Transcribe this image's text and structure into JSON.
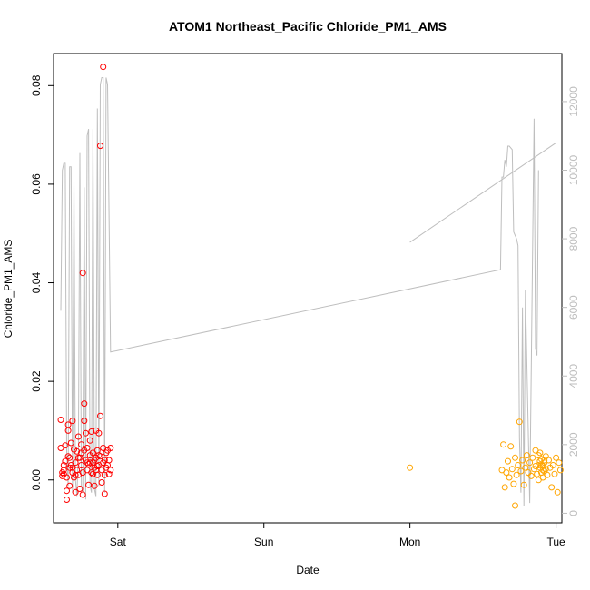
{
  "chart_data": {
    "type": "scatter",
    "title": "ATOM1 Northeast_Pacific Chloride_PM1_AMS",
    "xlabel": "Date",
    "ylabel": "Chloride_PM1_AMS",
    "x_ticks": [
      {
        "label": "Sat",
        "value": 0
      },
      {
        "label": "Sun",
        "value": 1
      },
      {
        "label": "Mon",
        "value": 2
      },
      {
        "label": "Tue",
        "value": 3
      }
    ],
    "xlim": [
      -0.44,
      3.04
    ],
    "ylim": [
      -0.0087,
      0.0865
    ],
    "y_ticks": [
      0.0,
      0.02,
      0.04,
      0.06,
      0.08
    ],
    "y_tick_labels": [
      "0.00",
      "0.02",
      "0.04",
      "0.06",
      "0.08"
    ],
    "y2lim": [
      -280,
      13400
    ],
    "y2_ticks": [
      0,
      2000,
      4000,
      6000,
      8000,
      10000,
      12000
    ],
    "y2_tick_labels": [
      "0",
      "2000",
      "4000",
      "6000",
      "8000",
      "10000",
      "12000"
    ],
    "grid": false,
    "colors": {
      "red": "#ff0000",
      "orange": "#ffa500",
      "gray": "#bebebe"
    },
    "series": [
      {
        "marker": "circle-open",
        "color": "#ff0000",
        "points": [
          [
            -0.39,
            0.0122
          ],
          [
            -0.39,
            0.0065
          ],
          [
            -0.38,
            0.0015
          ],
          [
            -0.38,
            0.0008
          ],
          [
            -0.37,
            0.003
          ],
          [
            -0.37,
            0.0012
          ],
          [
            -0.36,
            0.007
          ],
          [
            -0.36,
            0.0038
          ],
          [
            -0.35,
            0.0005
          ],
          [
            -0.35,
            -0.0022
          ],
          [
            -0.35,
            -0.004
          ],
          [
            -0.34,
            0.0112
          ],
          [
            -0.34,
            0.01
          ],
          [
            -0.34,
            0.0048
          ],
          [
            -0.33,
            0.0025
          ],
          [
            -0.33,
            -0.0012
          ],
          [
            -0.32,
            0.0075
          ],
          [
            -0.32,
            0.003
          ],
          [
            -0.31,
            0.012
          ],
          [
            -0.31,
            0.0015
          ],
          [
            -0.3,
            0.0062
          ],
          [
            -0.3,
            0.0005
          ],
          [
            -0.29,
            -0.0025
          ],
          [
            -0.29,
            0.0035
          ],
          [
            -0.28,
            0.0058
          ],
          [
            -0.28,
            0.002
          ],
          [
            -0.27,
            0.0088
          ],
          [
            -0.27,
            0.001
          ],
          [
            -0.26,
            0.0045
          ],
          [
            -0.26,
            -0.0018
          ],
          [
            -0.25,
            0.0072
          ],
          [
            -0.25,
            0.003
          ],
          [
            -0.24,
            0.0015
          ],
          [
            -0.24,
            -0.003
          ],
          [
            -0.23,
            0.006
          ],
          [
            -0.23,
            0.012
          ],
          [
            -0.23,
            0.0155
          ],
          [
            -0.22,
            0.004
          ],
          [
            -0.22,
            0.0095
          ],
          [
            -0.21,
            0.002
          ],
          [
            -0.21,
            0.0065
          ],
          [
            -0.2,
            -0.001
          ],
          [
            -0.2,
            0.0032
          ],
          [
            -0.19,
            0.005
          ],
          [
            -0.19,
            0.008
          ],
          [
            -0.18,
            0.0098
          ],
          [
            -0.18,
            0.0015
          ],
          [
            -0.17,
            0.0035
          ],
          [
            -0.17,
            0.0055
          ],
          [
            -0.16,
            0.0025
          ],
          [
            -0.16,
            -0.0012
          ],
          [
            -0.15,
            0.0045
          ],
          [
            -0.15,
            0.01
          ],
          [
            -0.14,
            0.001
          ],
          [
            -0.14,
            0.006
          ],
          [
            -0.13,
            0.003
          ],
          [
            -0.13,
            0.0095
          ],
          [
            -0.12,
            0.013
          ],
          [
            -0.12,
            0.0048
          ],
          [
            -0.11,
            0.002
          ],
          [
            -0.11,
            -0.0005
          ],
          [
            -0.1,
            0.0065
          ],
          [
            -0.1,
            0.0035
          ],
          [
            -0.09,
            0.001
          ],
          [
            -0.09,
            -0.0028
          ],
          [
            -0.08,
            0.0055
          ],
          [
            -0.08,
            0.0025
          ],
          [
            -0.07,
            0.003
          ],
          [
            -0.07,
            0.006
          ],
          [
            -0.06,
            0.0012
          ],
          [
            -0.06,
            0.004
          ],
          [
            -0.05,
            0.002
          ],
          [
            -0.05,
            0.0065
          ],
          [
            -0.37,
            0.002
          ],
          [
            -0.33,
            0.0045
          ],
          [
            -0.29,
            0.001
          ],
          [
            -0.25,
            0.0055
          ],
          [
            -0.21,
            0.0035
          ],
          [
            -0.17,
            0.0012
          ],
          [
            -0.13,
            0.005
          ],
          [
            -0.09,
            0.004
          ],
          [
            -0.24,
            0.042
          ],
          [
            -0.16,
            0.004
          ],
          [
            -0.14,
            0.0028
          ],
          [
            -0.12,
            0.0678
          ],
          [
            -0.1,
            0.0838
          ],
          [
            -0.15,
            0.002
          ],
          [
            -0.19,
            0.0035
          ],
          [
            -0.27,
            0.0045
          ],
          [
            -0.31,
            0.0025
          ]
        ]
      },
      {
        "marker": "circle-open",
        "color": "#ffa500",
        "points": [
          [
            2.0,
            0.0025
          ],
          [
            2.63,
            0.002
          ],
          [
            2.64,
            0.0072
          ],
          [
            2.65,
            -0.0015
          ],
          [
            2.66,
            0.0015
          ],
          [
            2.67,
            0.0038
          ],
          [
            2.68,
            0.0005
          ],
          [
            2.69,
            0.0068
          ],
          [
            2.7,
            0.0022
          ],
          [
            2.71,
            -0.0008
          ],
          [
            2.72,
            0.0045
          ],
          [
            2.73,
            0.001
          ],
          [
            2.74,
            0.003
          ],
          [
            2.75,
            0.0118
          ],
          [
            2.76,
            0.0018
          ],
          [
            2.77,
            0.004
          ],
          [
            2.78,
            -0.001
          ],
          [
            2.79,
            0.0025
          ],
          [
            2.8,
            0.005
          ],
          [
            2.81,
            0.0015
          ],
          [
            2.82,
            0.0035
          ],
          [
            2.83,
            0.0008
          ],
          [
            2.84,
            0.0045
          ],
          [
            2.85,
            0.0022
          ],
          [
            2.86,
            0.006
          ],
          [
            2.87,
            0.0012
          ],
          [
            2.88,
            0.003
          ],
          [
            2.88,
            0.005
          ],
          [
            2.89,
            0.0025
          ],
          [
            2.89,
            0.0038
          ],
          [
            2.9,
            0.0015
          ],
          [
            2.9,
            0.0042
          ],
          [
            2.91,
            0.0028
          ],
          [
            2.91,
            0.0005
          ],
          [
            2.92,
            0.0035
          ],
          [
            2.92,
            0.0018
          ],
          [
            2.93,
            0.0048
          ],
          [
            2.93,
            0.0022
          ],
          [
            2.94,
            0.001
          ],
          [
            2.95,
            0.004
          ],
          [
            2.96,
            0.0025
          ],
          [
            2.97,
            -0.0015
          ],
          [
            2.98,
            0.003
          ],
          [
            2.99,
            0.0012
          ],
          [
            3.0,
            0.0045
          ],
          [
            3.01,
            -0.0025
          ],
          [
            3.02,
            0.0035
          ],
          [
            3.03,
            0.002
          ],
          [
            2.72,
            -0.0052
          ],
          [
            2.88,
            0.0
          ],
          [
            2.89,
            0.0055
          ],
          [
            2.9,
            0.003
          ],
          [
            2.91,
            0.002
          ],
          [
            2.92,
            0.004
          ],
          [
            2.86,
            0.0028
          ]
        ]
      }
    ],
    "line_series": {
      "color": "#bebebe",
      "axis": "right",
      "points": [
        [
          -0.39,
          5900
        ],
        [
          -0.38,
          10000
        ],
        [
          -0.37,
          10200
        ],
        [
          -0.36,
          10200
        ],
        [
          -0.35,
          1800
        ],
        [
          -0.34,
          800
        ],
        [
          -0.33,
          10100
        ],
        [
          -0.32,
          10100
        ],
        [
          -0.31,
          600
        ],
        [
          -0.3,
          9700
        ],
        [
          -0.29,
          1000
        ],
        [
          -0.28,
          500
        ],
        [
          -0.27,
          1800
        ],
        [
          -0.26,
          10500
        ],
        [
          -0.25,
          800
        ],
        [
          -0.24,
          600
        ],
        [
          -0.23,
          9500
        ],
        [
          -0.22,
          400
        ],
        [
          -0.21,
          11000
        ],
        [
          -0.2,
          11200
        ],
        [
          -0.19,
          800
        ],
        [
          -0.18,
          600
        ],
        [
          -0.17,
          11200
        ],
        [
          -0.16,
          700
        ],
        [
          -0.15,
          500
        ],
        [
          -0.14,
          11800
        ],
        [
          -0.13,
          800
        ],
        [
          -0.12,
          12500
        ],
        [
          -0.11,
          12700
        ],
        [
          -0.1,
          12700
        ],
        [
          -0.09,
          600
        ],
        [
          -0.08,
          12700
        ],
        [
          -0.07,
          12500
        ],
        [
          -0.05,
          4700
        ],
        [
          2.62,
          7100
        ],
        [
          2.63,
          9800
        ],
        [
          2.64,
          9800
        ],
        [
          2.65,
          10300
        ],
        [
          2.66,
          10100
        ],
        [
          2.67,
          10700
        ],
        [
          2.68,
          10700
        ],
        [
          2.7,
          10600
        ],
        [
          2.71,
          8200
        ],
        [
          2.73,
          8000
        ],
        [
          2.74,
          7800
        ],
        [
          2.75,
          2200
        ],
        [
          2.76,
          600
        ],
        [
          2.77,
          6000
        ],
        [
          2.78,
          200
        ],
        [
          2.79,
          6500
        ],
        [
          2.82,
          300
        ],
        [
          2.85,
          11500
        ],
        [
          2.86,
          4800
        ],
        [
          2.87,
          4600
        ],
        [
          2.88,
          10000
        ]
      ],
      "second_segment": [
        [
          2.0,
          7900
        ],
        [
          3.0,
          10800
        ]
      ]
    }
  }
}
